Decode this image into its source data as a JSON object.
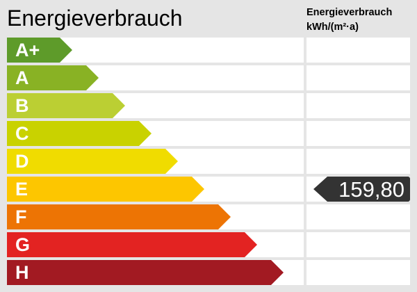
{
  "title": "Energieverbrauch",
  "column_header": {
    "line1": "Energieverbrauch",
    "line2": "kWh/(m²·a)"
  },
  "classes": [
    {
      "label": "A+",
      "color": "#5e9b2a"
    },
    {
      "label": "A",
      "color": "#89b224"
    },
    {
      "label": "B",
      "color": "#bbcf33"
    },
    {
      "label": "C",
      "color": "#c9d200"
    },
    {
      "label": "D",
      "color": "#f0dc00"
    },
    {
      "label": "E",
      "color": "#fdc600"
    },
    {
      "label": "F",
      "color": "#ed7404"
    },
    {
      "label": "G",
      "color": "#e32322"
    },
    {
      "label": "H",
      "color": "#a21a22"
    }
  ],
  "indicator": {
    "class": "E",
    "value": "159,80",
    "color": "#333333"
  }
}
